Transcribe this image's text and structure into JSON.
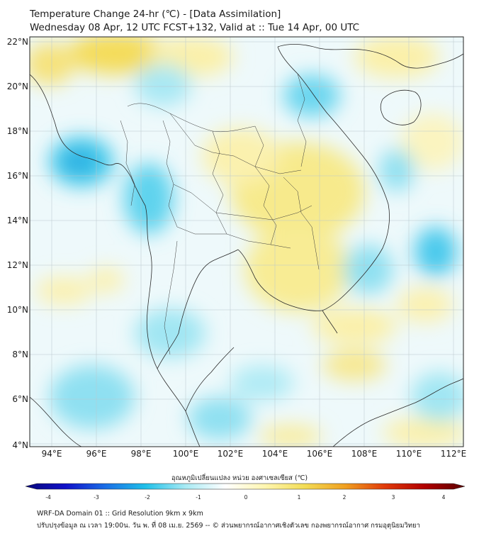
{
  "header": {
    "title_line1": "Temperature Change 24-hr (℃) - [Data Assimilation]",
    "title_line2": "Wednesday 08 Apr, 12 UTC FCST+132, Valid at :: Tue 14 Apr, 00 UTC"
  },
  "axes": {
    "lat_labels": [
      "22°N",
      "20°N",
      "18°N",
      "16°N",
      "14°N",
      "12°N",
      "10°N",
      "8°N",
      "6°N",
      "4°N"
    ],
    "lon_labels": [
      "94°E",
      "96°E",
      "98°E",
      "100°E",
      "102°E",
      "104°E",
      "106°E",
      "108°E",
      "110°E",
      "112°E"
    ]
  },
  "colorbar": {
    "title": "อุณหภูมิเปลี่ยนแปลง หน่วย องศาเซลเซียส (℃)",
    "ticks": [
      "-4",
      "-3",
      "-2",
      "-1",
      "0",
      "1",
      "2",
      "3",
      "4"
    ],
    "min": -4,
    "max": 4,
    "colors": [
      "#08087a",
      "#1010c8",
      "#1a6ee6",
      "#1fc0e8",
      "#a8eaf4",
      "#ffffff",
      "#fff6b0",
      "#f2dc55",
      "#f0a020",
      "#e03a0a",
      "#b00000",
      "#5a0000"
    ]
  },
  "footer": {
    "line1": "WRF-DA Domain 01 :: Grid Resolution 9km x 9km",
    "line2": "ปรับปรุงข้อมูล ณ เวลา 19:00น. วัน พ. ที่ 08 เม.ย. 2569 -- © ส่วนพยากรณ์อากาศเชิงตัวเลข กองพยากรณ์อากาศ กรมอุตุนิยมวิทยา"
  },
  "colors": {
    "warm": "#f6e98a",
    "cool": "#7fdcef",
    "coast": "#2a2a2a"
  }
}
